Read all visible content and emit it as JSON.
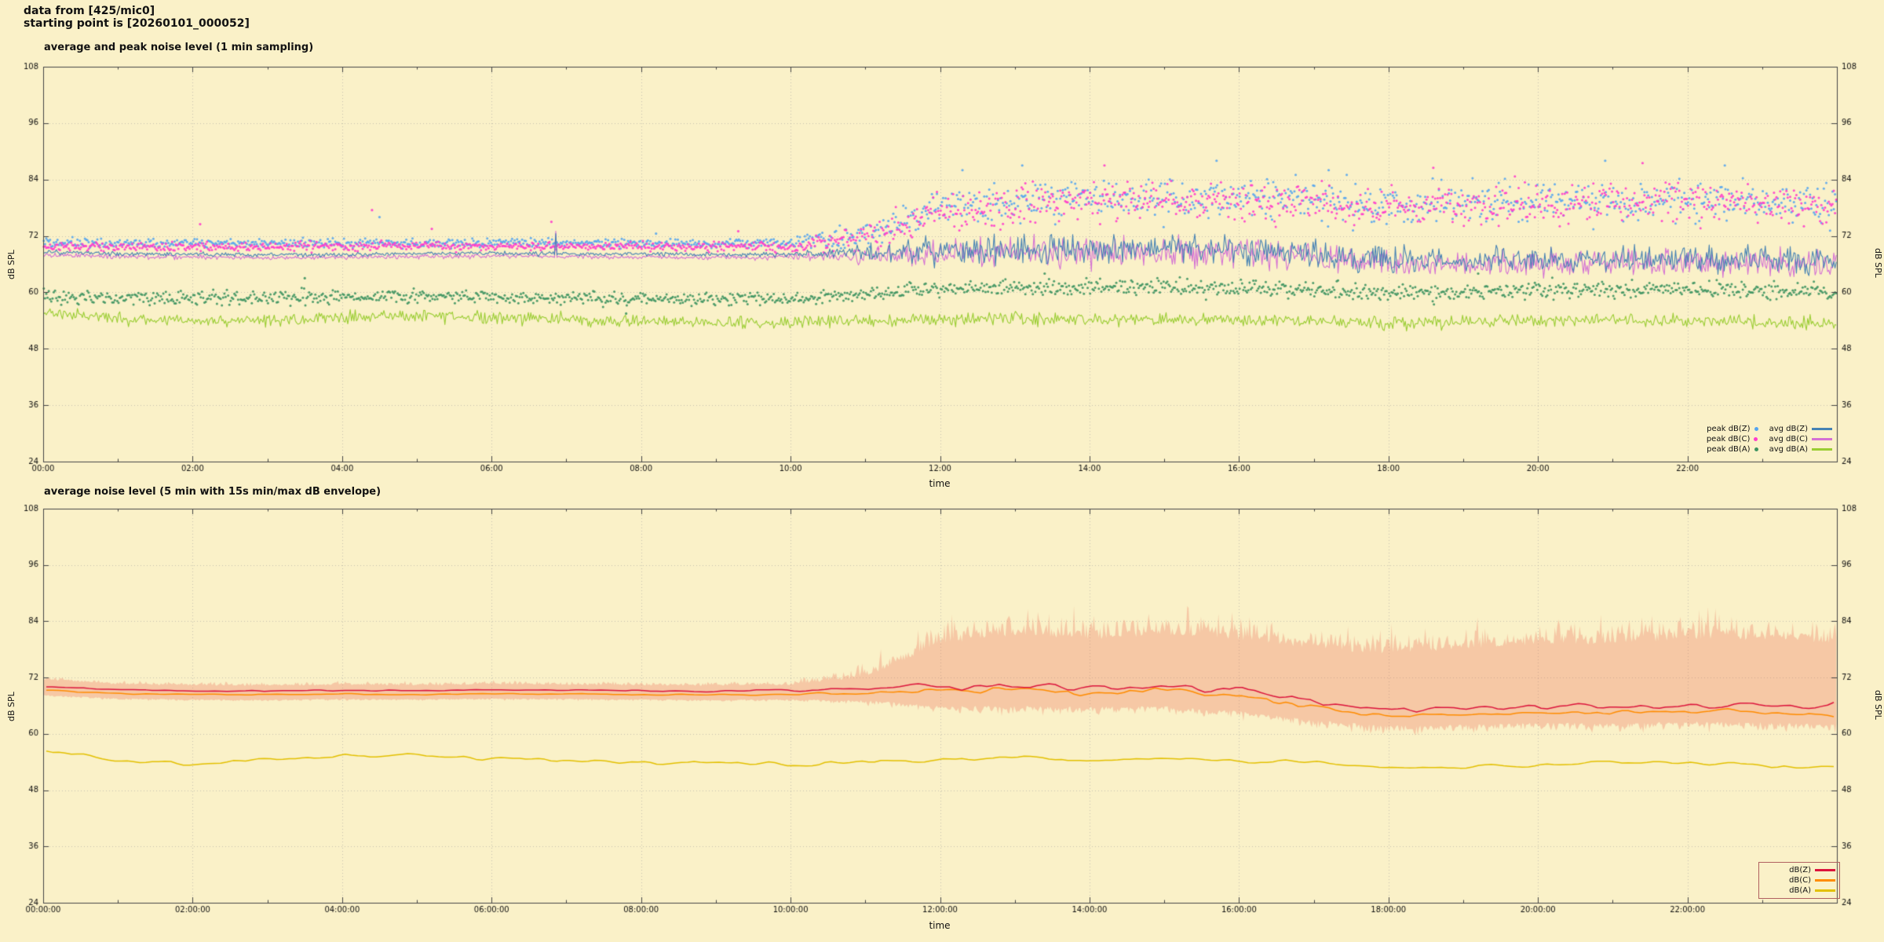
{
  "header": {
    "line1": "data from [425/mic0]",
    "line2": "starting point is [20260101_000052]"
  },
  "colors": {
    "background": "#faf1c8",
    "grid": "#999999",
    "frame": "#444444",
    "text": "#111111"
  },
  "chart_data": [
    {
      "type": "line+scatter",
      "title": "average and peak noise level (1 min sampling)",
      "xlabel": "time",
      "ylabel_left": "dB SPL",
      "ylabel_right": "dB SPL",
      "ylim": [
        24,
        108
      ],
      "yticks": [
        24,
        36,
        48,
        60,
        72,
        84,
        96,
        108
      ],
      "xlim_hours": [
        0,
        24
      ],
      "xtick_hours": [
        0,
        2,
        4,
        6,
        8,
        10,
        12,
        14,
        16,
        18,
        20,
        22
      ],
      "xtick_labels": [
        "00:00",
        "02:00",
        "04:00",
        "06:00",
        "08:00",
        "10:00",
        "12:00",
        "14:00",
        "16:00",
        "18:00",
        "20:00",
        "22:00"
      ],
      "sampling_minutes": 1,
      "grid_on": true,
      "legend_position": "bottom-right",
      "series": [
        {
          "name": "peak dB(Z)",
          "style": "scatter",
          "color": "#55a5f0",
          "mean": [
            70.5,
            70.4,
            70.4,
            70.4,
            70.5,
            70.5,
            70.6,
            70.5,
            70.4,
            70.4,
            70.5,
            72,
            78,
            79,
            80,
            80,
            80,
            79.5,
            78.5,
            79,
            79.5,
            79,
            79.5,
            79,
            78.5
          ],
          "amp": [
            1,
            1,
            1,
            1,
            1,
            1,
            1,
            1,
            1,
            1,
            1.2,
            3,
            4.5,
            4.5,
            4.5,
            4.5,
            4.5,
            4.5,
            4.5,
            4.5,
            4.5,
            4.5,
            4.5,
            4.5,
            4.5
          ],
          "outliers": [
            [
              4.5,
              76
            ],
            [
              8.2,
              72.5
            ],
            [
              12.3,
              86
            ],
            [
              13.1,
              87
            ],
            [
              15.7,
              88
            ],
            [
              17.2,
              86
            ],
            [
              20.9,
              88
            ],
            [
              22.5,
              87
            ]
          ]
        },
        {
          "name": "peak dB(C)",
          "style": "scatter",
          "color": "#ff3ccc",
          "mean": [
            69.8,
            69.7,
            69.7,
            69.7,
            69.8,
            69.8,
            69.9,
            69.8,
            69.7,
            69.7,
            69.8,
            71.5,
            77.5,
            78.5,
            79.5,
            79.5,
            79.5,
            79,
            78,
            78.5,
            79,
            78.5,
            79,
            78.5,
            78
          ],
          "amp": [
            1,
            1,
            1,
            1,
            1,
            1,
            1,
            1,
            1,
            1,
            1.2,
            3,
            4.5,
            4.5,
            4.5,
            4.5,
            4.5,
            4.5,
            4.5,
            4.5,
            4.5,
            4.5,
            4.5,
            4.5,
            4.5
          ],
          "outliers": [
            [
              2.1,
              74.5
            ],
            [
              4.4,
              77.5
            ],
            [
              5.2,
              73.5
            ],
            [
              6.8,
              75
            ],
            [
              9.3,
              73
            ],
            [
              14.2,
              87
            ],
            [
              18.6,
              86.5
            ],
            [
              21.4,
              87.5
            ]
          ]
        },
        {
          "name": "peak dB(A)",
          "style": "scatter",
          "color": "#3d9360",
          "mean": [
            59,
            58.8,
            58.6,
            58.8,
            59,
            59.2,
            59,
            58.8,
            58.6,
            58.6,
            58.6,
            59.5,
            60.8,
            61,
            61.2,
            61,
            61,
            60.6,
            60,
            60.2,
            60.5,
            60.5,
            60.5,
            60.2,
            60
          ],
          "amp": [
            1.5,
            1.5,
            1.5,
            1.5,
            1.5,
            1.5,
            1.5,
            1.5,
            1.5,
            1.5,
            1.5,
            1.6,
            1.8,
            1.8,
            1.8,
            1.8,
            1.8,
            1.8,
            1.8,
            1.8,
            1.8,
            1.8,
            1.8,
            1.8,
            1.8
          ],
          "outliers": [
            [
              3.5,
              63
            ],
            [
              7.8,
              55.5
            ],
            [
              13.4,
              64
            ],
            [
              19.2,
              64
            ]
          ]
        },
        {
          "name": "avg dB(Z)",
          "style": "line",
          "color": "#4682b4",
          "width": 1.1,
          "mean": [
            68.6,
            68.2,
            68.1,
            68,
            68.1,
            68.2,
            68.3,
            68.2,
            68.1,
            68,
            68.1,
            68.4,
            69,
            69.2,
            69,
            69.3,
            69.2,
            68.3,
            67,
            66.8,
            67,
            67,
            67.2,
            67,
            66.8
          ],
          "amp": [
            0.5,
            0.5,
            0.5,
            0.5,
            0.5,
            0.5,
            0.5,
            0.5,
            0.5,
            0.5,
            0.6,
            1.8,
            3.2,
            3.2,
            3.2,
            3.2,
            3.2,
            3,
            3,
            3,
            3,
            3,
            3,
            3,
            3
          ],
          "spikes": [
            [
              6.85,
              72.5
            ]
          ]
        },
        {
          "name": "avg dB(C)",
          "style": "line",
          "color": "#d470d4",
          "width": 1.1,
          "mean": [
            68,
            67.6,
            67.5,
            67.4,
            67.5,
            67.6,
            67.7,
            67.6,
            67.5,
            67.4,
            67.5,
            67.8,
            68.3,
            68.5,
            68.3,
            68.6,
            68.5,
            67.5,
            66.2,
            66,
            66.2,
            66.2,
            66.4,
            66.2,
            66
          ],
          "amp": [
            0.5,
            0.5,
            0.5,
            0.5,
            0.5,
            0.5,
            0.5,
            0.5,
            0.5,
            0.5,
            0.6,
            1.8,
            3.2,
            3.2,
            3.2,
            3.2,
            3.2,
            3,
            3,
            3,
            3,
            3,
            3,
            3,
            3
          ],
          "spikes": [
            [
              6.85,
              73
            ]
          ]
        },
        {
          "name": "avg dB(A)",
          "style": "line",
          "color": "#9acd32",
          "width": 1.1,
          "mean": [
            55.5,
            54.5,
            53.8,
            54.2,
            54.6,
            55,
            54.6,
            54.2,
            54,
            53.6,
            53.6,
            54,
            54.2,
            54.6,
            54.2,
            54.2,
            54.2,
            53.8,
            53.2,
            53.6,
            54,
            54.2,
            54,
            53.6,
            53.2
          ],
          "amp": 1.4
        }
      ]
    },
    {
      "type": "line+band",
      "title": "average noise level (5 min with 15s min/max dB envelope)",
      "xlabel": "time",
      "ylabel_left": "dB SPL",
      "ylabel_right": "dB SPL",
      "ylim": [
        24,
        108
      ],
      "yticks": [
        24,
        36,
        48,
        60,
        72,
        84,
        96,
        108
      ],
      "xlim_hours": [
        0,
        24
      ],
      "xtick_hours": [
        0,
        2,
        4,
        6,
        8,
        10,
        12,
        14,
        16,
        18,
        20,
        22
      ],
      "xtick_labels": [
        "00:00:00",
        "02:00:00",
        "04:00:00",
        "06:00:00",
        "08:00:00",
        "10:00:00",
        "12:00:00",
        "14:00:00",
        "16:00:00",
        "18:00:00",
        "20:00:00",
        "22:00:00"
      ],
      "sampling_minutes": 5,
      "grid_on": true,
      "legend_position": "bottom-right",
      "envelope": {
        "name": "15s min/max dB envelope",
        "color": "rgba(238,122,100,0.35)",
        "max_mean": [
          71.5,
          70.5,
          70.3,
          70.2,
          70.4,
          70.3,
          70.5,
          70.4,
          70.3,
          70.2,
          70.4,
          72,
          79,
          81,
          80,
          81,
          80,
          78,
          77,
          78,
          79,
          79,
          80,
          80,
          79
        ],
        "max_amp": [
          0.8,
          0.8,
          0.8,
          0.8,
          0.8,
          0.8,
          0.8,
          0.8,
          0.8,
          0.8,
          1,
          3,
          5,
          5,
          5,
          5,
          5,
          5,
          5,
          5,
          5,
          5,
          5,
          5,
          5
        ],
        "min_mean": [
          68.3,
          67.6,
          67.4,
          67.3,
          67.5,
          67.4,
          67.6,
          67.5,
          67.4,
          67.3,
          67.4,
          67.2,
          66,
          66,
          65.8,
          66,
          65,
          63,
          61.8,
          62,
          62.5,
          62.3,
          62.7,
          62.5,
          62.1
        ],
        "min_amp": [
          0.4,
          0.4,
          0.4,
          0.4,
          0.4,
          0.4,
          0.4,
          0.4,
          0.4,
          0.4,
          0.5,
          1,
          1.8,
          1.8,
          1.8,
          1.8,
          1.8,
          1.8,
          1.8,
          1.8,
          1.8,
          1.8,
          1.8,
          1.8,
          1.8
        ]
      },
      "series": [
        {
          "name": "dB(Z)",
          "style": "line",
          "color": "#dc143c",
          "width": 1.5,
          "smooth": 2,
          "mean": [
            70.2,
            69.4,
            69.2,
            69.1,
            69.3,
            69.2,
            69.4,
            69.3,
            69.2,
            69.1,
            69.2,
            69.4,
            69.9,
            70.3,
            69.9,
            70.3,
            69.5,
            67,
            65.3,
            65.5,
            66,
            65.8,
            66.2,
            66,
            65.6
          ],
          "amp": [
            0.35,
            0.35,
            0.35,
            0.35,
            0.35,
            0.35,
            0.35,
            0.35,
            0.35,
            0.35,
            0.4,
            0.8,
            1.6,
            1.6,
            1.6,
            1.8,
            1.8,
            1.5,
            1.2,
            1.2,
            1.2,
            1.2,
            1.2,
            1.2,
            1.2
          ]
        },
        {
          "name": "dB(C)",
          "style": "line",
          "color": "#ff8c00",
          "width": 1.5,
          "smooth": 2,
          "mean": [
            69.3,
            68.6,
            68.4,
            68.3,
            68.5,
            68.4,
            68.6,
            68.5,
            68.4,
            68.3,
            68.4,
            68.6,
            69,
            69.3,
            68.9,
            69.2,
            68.3,
            65.6,
            63.8,
            64,
            64.5,
            64.3,
            64.7,
            64.5,
            64.1
          ],
          "amp": [
            0.3,
            0.3,
            0.3,
            0.3,
            0.3,
            0.3,
            0.3,
            0.3,
            0.3,
            0.3,
            0.35,
            0.7,
            1.4,
            1.4,
            1.4,
            1.6,
            1.6,
            1.4,
            1.1,
            1.1,
            1.1,
            1.1,
            1.1,
            1.1,
            1.1
          ]
        },
        {
          "name": "dB(A)",
          "style": "line",
          "color": "#e3c000",
          "width": 1.5,
          "smooth": 2,
          "mean": [
            56.2,
            54.4,
            53.6,
            54.4,
            55,
            55.6,
            55,
            54.4,
            54,
            53.6,
            53.6,
            54,
            54.4,
            55,
            54.4,
            54.4,
            54.4,
            54,
            52.6,
            53,
            53.4,
            54,
            53.8,
            53.4,
            53
          ],
          "amp": 0.9
        }
      ]
    }
  ]
}
